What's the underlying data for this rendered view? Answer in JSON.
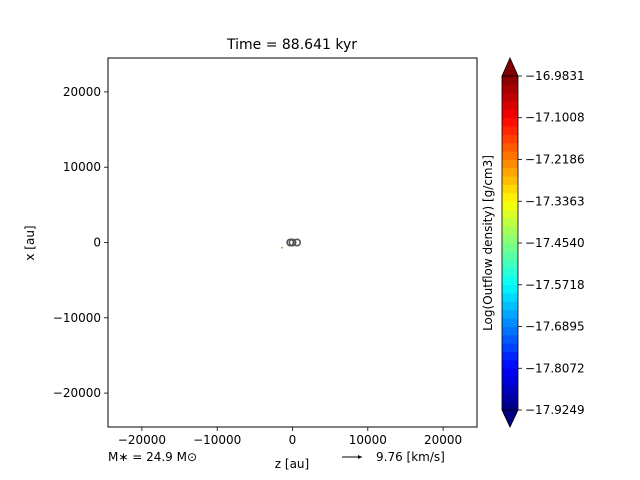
{
  "chart_data": {
    "type": "heatmap",
    "title": "Time = 88.641 kyr",
    "xlabel": "z [au]",
    "ylabel": "x [au]",
    "xlim": [
      -24500,
      24500
    ],
    "ylim": [
      -24500,
      24500
    ],
    "xticks": [
      -20000,
      -10000,
      0,
      10000,
      20000
    ],
    "xtick_labels": [
      "−20000",
      "−10000",
      "0",
      "10000",
      "20000"
    ],
    "yticks": [
      -20000,
      -10000,
      0,
      10000,
      20000
    ],
    "ytick_labels": [
      "−20000",
      "−10000",
      "0",
      "10000",
      "20000"
    ],
    "grid": false,
    "outflow_markers": [
      {
        "x": -300,
        "y": 0
      },
      {
        "x": 0,
        "y": 0
      },
      {
        "x": 600,
        "y": 0
      }
    ],
    "annotations": {
      "stellar_mass": "M∗ = 24.9 M⊙",
      "vector_scale": "9.76 [km/s]"
    },
    "colorbar": {
      "label": "Log(Outflow density) [g/cm3]",
      "min": -17.9249,
      "max": -16.9831,
      "tick_values": [
        -17.9249,
        -17.8072,
        -17.6895,
        -17.5718,
        -17.454,
        -17.3363,
        -17.2186,
        -17.1008,
        -16.9831
      ],
      "tick_labels": [
        "−17.9249",
        "−17.8072",
        "−17.6895",
        "−17.5718",
        "−17.4540",
        "−17.3363",
        "−17.2186",
        "−17.1008",
        "−16.9831"
      ],
      "levels": 40,
      "colormap": "jet",
      "extend": "both"
    }
  }
}
